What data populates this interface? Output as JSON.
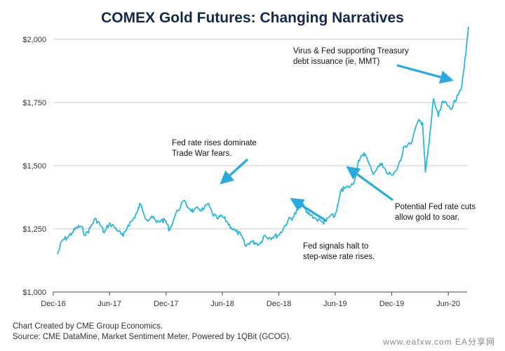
{
  "title": "COMEX Gold Futures: Changing Narratives",
  "footer": {
    "line1": "Chart Created by CME Group Economics.",
    "line2": "Source:  CME DataMine, Market Sentiment Meter, Powered by 1QBit (GCOG)."
  },
  "watermark": "www.eafxw.com  EA分享网",
  "colors": {
    "line": "#29b6e0",
    "arrow": "#29a9dc",
    "title": "#13294b",
    "grid": "#c8c8c8"
  },
  "chart_data": {
    "type": "line",
    "title": "COMEX Gold Futures: Changing Narratives",
    "xlabel": "",
    "ylabel": "",
    "ylim": [
      1000,
      2000
    ],
    "xlim": [
      "2016-12",
      "2020-08"
    ],
    "grid": true,
    "y_ticks": [
      {
        "value": 2000,
        "label": "$2,000"
      },
      {
        "value": 1750,
        "label": "$1,750"
      },
      {
        "value": 1500,
        "label": "$1,500"
      },
      {
        "value": 1250,
        "label": "$1,250"
      },
      {
        "value": 1000,
        "label": "$1,000"
      }
    ],
    "x_ticks": [
      {
        "value": "2016-12",
        "label": "Dec-16"
      },
      {
        "value": "2017-06",
        "label": "Jun-17"
      },
      {
        "value": "2017-12",
        "label": "Dec-17"
      },
      {
        "value": "2018-06",
        "label": "Jun-18"
      },
      {
        "value": "2018-12",
        "label": "Dec-18"
      },
      {
        "value": "2019-06",
        "label": "Jun-19"
      },
      {
        "value": "2019-12",
        "label": "Dec-19"
      },
      {
        "value": "2020-06",
        "label": "Jun-20"
      }
    ],
    "series": [
      {
        "name": "",
        "x": [
          "2016-12-15",
          "2016-12-30",
          "2017-01-15",
          "2017-01-31",
          "2017-02-15",
          "2017-02-28",
          "2017-03-15",
          "2017-03-31",
          "2017-04-15",
          "2017-04-30",
          "2017-05-15",
          "2017-05-31",
          "2017-06-15",
          "2017-06-30",
          "2017-07-15",
          "2017-07-31",
          "2017-08-15",
          "2017-08-31",
          "2017-09-08",
          "2017-09-30",
          "2017-10-15",
          "2017-10-31",
          "2017-11-15",
          "2017-11-30",
          "2017-12-12",
          "2017-12-31",
          "2018-01-25",
          "2018-02-15",
          "2018-02-28",
          "2018-03-15",
          "2018-03-31",
          "2018-04-15",
          "2018-04-30",
          "2018-05-15",
          "2018-05-31",
          "2018-06-15",
          "2018-06-30",
          "2018-07-15",
          "2018-07-31",
          "2018-08-16",
          "2018-08-31",
          "2018-09-15",
          "2018-09-30",
          "2018-10-15",
          "2018-10-31",
          "2018-11-15",
          "2018-11-30",
          "2018-12-15",
          "2018-12-31",
          "2019-01-15",
          "2019-01-31",
          "2019-02-20",
          "2019-02-28",
          "2019-03-15",
          "2019-03-31",
          "2019-04-23",
          "2019-04-30",
          "2019-05-15",
          "2019-05-31",
          "2019-06-10",
          "2019-06-20",
          "2019-06-30",
          "2019-07-15",
          "2019-07-31",
          "2019-08-15",
          "2019-08-31",
          "2019-09-04",
          "2019-09-30",
          "2019-10-15",
          "2019-10-31",
          "2019-11-15",
          "2019-11-30",
          "2019-12-15",
          "2019-12-31",
          "2020-01-08",
          "2020-01-31",
          "2020-02-24",
          "2020-03-10",
          "2020-03-19",
          "2020-03-31",
          "2020-04-14",
          "2020-04-30",
          "2020-05-15",
          "2020-05-31",
          "2020-06-15",
          "2020-06-30",
          "2020-07-15",
          "2020-07-27",
          "2020-08-05"
        ],
        "values": [
          1150,
          1205,
          1215,
          1235,
          1255,
          1260,
          1225,
          1255,
          1290,
          1270,
          1235,
          1270,
          1260,
          1240,
          1220,
          1265,
          1285,
          1320,
          1350,
          1285,
          1300,
          1275,
          1285,
          1280,
          1245,
          1305,
          1360,
          1330,
          1320,
          1330,
          1325,
          1350,
          1310,
          1290,
          1300,
          1280,
          1255,
          1240,
          1225,
          1180,
          1200,
          1195,
          1190,
          1225,
          1215,
          1220,
          1225,
          1250,
          1285,
          1295,
          1325,
          1345,
          1315,
          1305,
          1290,
          1275,
          1280,
          1300,
          1300,
          1345,
          1400,
          1410,
          1415,
          1430,
          1520,
          1540,
          1550,
          1470,
          1490,
          1510,
          1470,
          1465,
          1480,
          1520,
          1575,
          1585,
          1675,
          1670,
          1475,
          1590,
          1765,
          1695,
          1755,
          1735,
          1730,
          1780,
          1815,
          1935,
          2050
        ]
      }
    ],
    "annotations": [
      {
        "lines": [
          "Virus & Fed supporting Treasury",
          "debt issuance (ie, MMT)"
        ],
        "arrow_to": [
          "2020-06-08",
          1840
        ]
      },
      {
        "lines": [
          "Fed rate rises dominate",
          "Trade War fears."
        ],
        "arrow_to": [
          "2018-06-01",
          1435
        ]
      },
      {
        "lines": [
          "Potential Fed rate cuts",
          "allow gold to soar."
        ],
        "arrow_to": [
          "2019-07-15",
          1490
        ]
      },
      {
        "lines": [
          "Fed signals halt to",
          "step-wise rate rises."
        ],
        "arrow_to": [
          "2019-01-15",
          1365
        ]
      }
    ]
  }
}
